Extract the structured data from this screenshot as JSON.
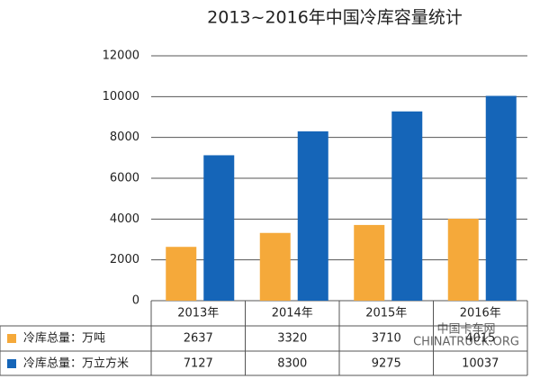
{
  "chart_data": {
    "type": "bar",
    "title": "2013~2016年中国冷库容量统计",
    "categories": [
      "2013年",
      "2014年",
      "2015年",
      "2016年"
    ],
    "series": [
      {
        "name": "冷库总量：万吨",
        "color": "#f5a93a",
        "values": [
          2637,
          3320,
          3710,
          4015
        ]
      },
      {
        "name": "冷库总量：万立方米",
        "color": "#1565b8",
        "values": [
          7127,
          8300,
          9275,
          10037
        ]
      }
    ],
    "ylim": [
      0,
      12000
    ],
    "yticks": [
      0,
      2000,
      4000,
      6000,
      8000,
      10000,
      12000
    ],
    "grid": true,
    "watermark": [
      "中国卡车网",
      "CHINATRUCK.ORG"
    ]
  }
}
